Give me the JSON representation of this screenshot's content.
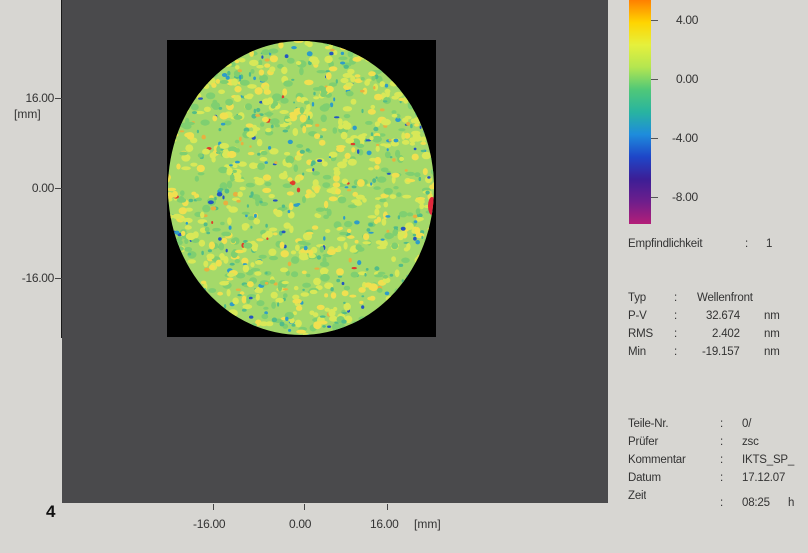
{
  "figure_number": "4",
  "plot": {
    "y_ticks": [
      "16.00",
      "0.00",
      "-16.00"
    ],
    "y_unit": "[mm]",
    "x_ticks": [
      "-16.00",
      "0.00",
      "16.00"
    ],
    "x_unit": "[mm]"
  },
  "colorbar": {
    "labels": [
      "4.00",
      "0.00",
      "-4.00",
      "-8.00"
    ],
    "colors": [
      "#ff7f00",
      "#ffd400",
      "#e6f03c",
      "#b4e650",
      "#50c878",
      "#28b4a0",
      "#1e8cdc",
      "#1e46c8",
      "#3c1e96",
      "#6e1e8c",
      "#b41e78"
    ]
  },
  "sensitivity": {
    "label": "Empfindlichkeit",
    "sep": ":",
    "value": "1"
  },
  "stats": [
    {
      "key": "Typ",
      "sep": ":",
      "value": "Wellenfront",
      "unit": ""
    },
    {
      "key": "P-V",
      "sep": ":",
      "value": "32.674",
      "unit": "nm"
    },
    {
      "key": "RMS",
      "sep": ":",
      "value": "2.402",
      "unit": "nm"
    },
    {
      "key": "Min",
      "sep": ":",
      "value": "-19.157",
      "unit": "nm"
    }
  ],
  "meta": [
    {
      "key": "Teile-Nr.",
      "sep": ":",
      "value": "0/",
      "unit": ""
    },
    {
      "key": "Prüfer",
      "sep": ":",
      "value": "zsc",
      "unit": ""
    },
    {
      "key": "Kommentar",
      "sep": ":",
      "value": "IKTS_SP_",
      "unit": ""
    },
    {
      "key": "Datum",
      "sep": ":",
      "value": "17.12.07",
      "unit": ""
    },
    {
      "key": "Zeit",
      "sep": ":",
      "value": "08:25",
      "unit": "h"
    }
  ]
}
